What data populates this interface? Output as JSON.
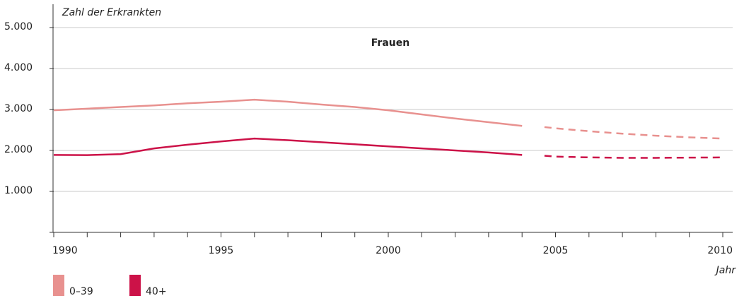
{
  "chart_data": {
    "type": "line",
    "title": "Frauen",
    "y_label": "Zahl der Erkrankten",
    "x_label": "Jahr",
    "x": [
      1990,
      1991,
      1992,
      1993,
      1994,
      1995,
      1996,
      1997,
      1998,
      1999,
      2000,
      2001,
      2002,
      2003,
      2004,
      2005,
      2006,
      2007,
      2008,
      2009,
      2010
    ],
    "projection_start": 2004,
    "series": [
      {
        "name": "0–39",
        "color": "#e8918f",
        "values": [
          2980,
          3020,
          3060,
          3100,
          3150,
          3190,
          3240,
          3190,
          3120,
          3060,
          2980,
          2880,
          2780,
          2690,
          2600,
          2540,
          2470,
          2410,
          2360,
          2320,
          2290
        ]
      },
      {
        "name": "40+",
        "color": "#cc1248",
        "values": [
          1890,
          1885,
          1910,
          2050,
          2140,
          2220,
          2290,
          2250,
          2200,
          2150,
          2100,
          2050,
          2000,
          1950,
          1890,
          1850,
          1830,
          1820,
          1820,
          1825,
          1830
        ]
      }
    ],
    "xlim": [
      1990,
      2010
    ],
    "xticks": [
      1990,
      1995,
      2000,
      2005,
      2010
    ],
    "xminor_ticks": [
      1991,
      1992,
      1993,
      1994,
      1996,
      1997,
      1998,
      1999,
      2001,
      2002,
      2003,
      2004,
      2006,
      2007,
      2008,
      2009
    ],
    "ylim": [
      0,
      5500
    ],
    "yticks": [
      {
        "value": 1000,
        "label": "1.000"
      },
      {
        "value": 2000,
        "label": "2.000"
      },
      {
        "value": 3000,
        "label": "3.000"
      },
      {
        "value": 4000,
        "label": "4.000"
      },
      {
        "value": 5000,
        "label": "5.000"
      }
    ],
    "grid": true,
    "legend": "bottom-left"
  }
}
